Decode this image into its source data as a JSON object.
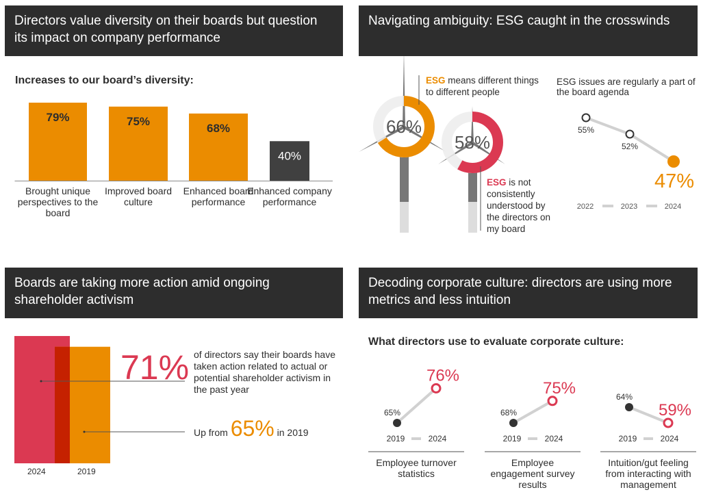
{
  "colors": {
    "orange": "#eb8c00",
    "red": "#db3952",
    "dark": "#2d2d2d",
    "gray": "#d1d1d1",
    "overlap": "#c52100"
  },
  "panels": {
    "diversity": {
      "title": "Directors value diversity on their boards but question its impact on company performance",
      "subtitle": "Increases to our board’s diversity:"
    },
    "esg": {
      "title": "Navigating ambiguity: ESG caught in the crosswinds",
      "donut1": {
        "value_label": "66%",
        "bold": "ESG",
        "text": " means different things to different people"
      },
      "donut2": {
        "value_label": "58%",
        "bold": "ESG",
        "text": " is not consistently understood by the directors on my board"
      },
      "line_title": "ESG issues are regularly a part of the board agenda"
    },
    "activism": {
      "title": "Boards are taking more action amid ongoing shareholder activism",
      "big": "71%",
      "text": "of directors say their boards have taken action related to actual or potential shareholder activism in the past year",
      "up_from": "Up from",
      "prev": "65%",
      "in_year": "in 2019",
      "year_2024": "2024",
      "year_2019": "2019"
    },
    "culture": {
      "title": "Decoding corporate culture: directors are using more metrics and less intuition",
      "subtitle": "What directors use to evaluate corporate culture:"
    }
  },
  "chart_data": [
    {
      "type": "bar",
      "title": "Increases to our board’s diversity:",
      "categories": [
        "Brought unique perspectives to the board",
        "Improved board culture",
        "Enhanced board performance",
        "Enhanced company performance"
      ],
      "values": [
        79,
        75,
        68,
        40
      ],
      "labels": [
        "79%",
        "75%",
        "68%",
        "40%"
      ],
      "colors": [
        "#eb8c00",
        "#eb8c00",
        "#eb8c00",
        "#404040"
      ]
    },
    {
      "type": "pie",
      "style": "donut",
      "values": [
        66,
        58
      ],
      "labels": [
        "66%",
        "58%"
      ]
    },
    {
      "type": "line",
      "title": "ESG issues are regularly a part of the board agenda",
      "x": [
        "2022",
        "2023",
        "2024"
      ],
      "values": [
        55,
        52,
        47
      ],
      "labels": [
        "55%",
        "52%",
        "47%"
      ]
    },
    {
      "type": "bar",
      "categories": [
        "2024",
        "2019"
      ],
      "values": [
        71,
        65
      ],
      "labels": [
        "71%",
        "65%"
      ]
    },
    {
      "type": "line",
      "title": "What directors use to evaluate corporate culture:",
      "x": [
        "2019",
        "2024"
      ],
      "series": [
        {
          "name": "Employee turnover statistics",
          "values": [
            65,
            76
          ],
          "labels": [
            "65%",
            "76%"
          ]
        },
        {
          "name": "Employee engagement survey results",
          "values": [
            68,
            75
          ],
          "labels": [
            "68%",
            "75%"
          ]
        },
        {
          "name": "Intuition/gut feeling from interacting with management",
          "values": [
            64,
            59
          ],
          "labels": [
            "64%",
            "59%"
          ]
        }
      ]
    }
  ]
}
